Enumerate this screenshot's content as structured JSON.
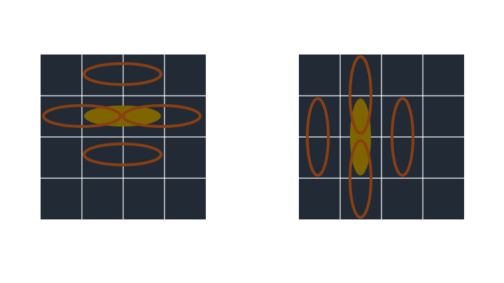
{
  "colors": {
    "background": "#ffffff",
    "grid_fill": "#222a36",
    "grid_lines": "#ffffff",
    "ellipse_stroke": "#8a3f12",
    "filled_ellipse": "#7f6500"
  },
  "panels": [
    {
      "id": "left",
      "grid": {
        "rows": 4,
        "cols": 4
      },
      "orientation": "horizontal",
      "filled_ellipse_count": 1,
      "outline_ellipse_count": 4
    },
    {
      "id": "right",
      "grid": {
        "rows": 4,
        "cols": 4
      },
      "orientation": "vertical",
      "filled_ellipse_count": 1,
      "outline_ellipse_count": 4
    }
  ]
}
